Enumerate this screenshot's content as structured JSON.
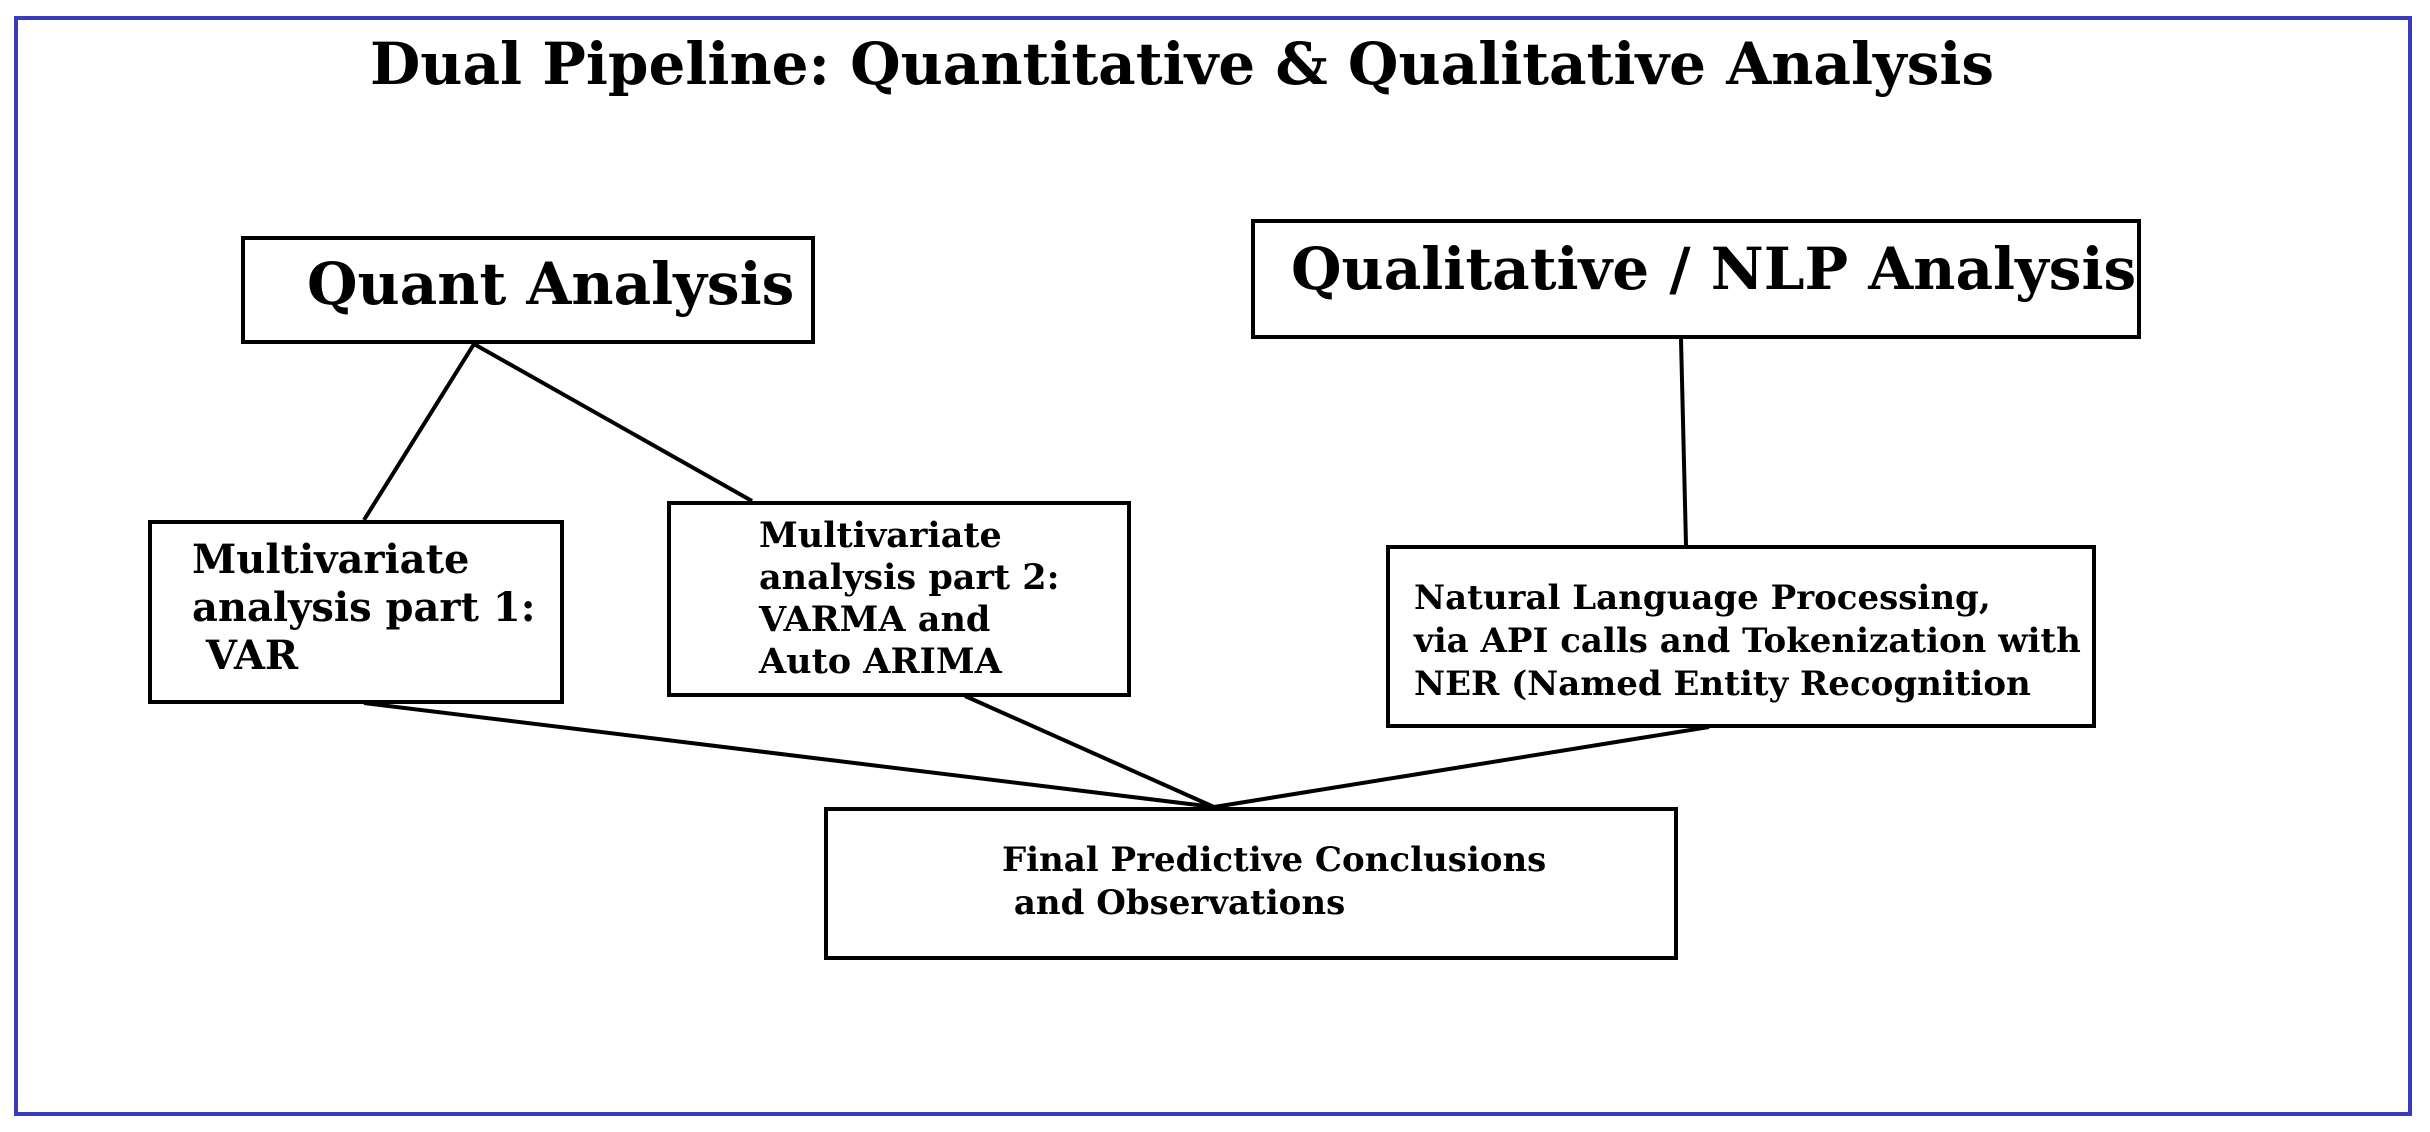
{
  "diagram": {
    "title": "Dual Pipeline: Quantitative & Qualitative Analysis",
    "frame_color": "#3b3bbd",
    "line_color": "#000000",
    "nodes": {
      "quant": {
        "text": "Quant Analysis"
      },
      "qual": {
        "text": "Qualitative / NLP Analysis"
      },
      "mv1": {
        "text": "Multivariate\nanalysis part 1:\n VAR"
      },
      "mv2": {
        "text": "Multivariate\nanalysis part 2:\nVARMA and\nAuto ARIMA"
      },
      "nlp": {
        "text": "Natural Language Processing,\nvia API calls and Tokenization with\nNER (Named Entity Recognition"
      },
      "final": {
        "text": "Final Predictive Conclusions\n and Observations"
      }
    },
    "edges": [
      {
        "from": "quant",
        "to": "mv1"
      },
      {
        "from": "quant",
        "to": "mv2"
      },
      {
        "from": "qual",
        "to": "nlp"
      },
      {
        "from": "mv1",
        "to": "final"
      },
      {
        "from": "mv2",
        "to": "final"
      },
      {
        "from": "nlp",
        "to": "final"
      }
    ]
  }
}
